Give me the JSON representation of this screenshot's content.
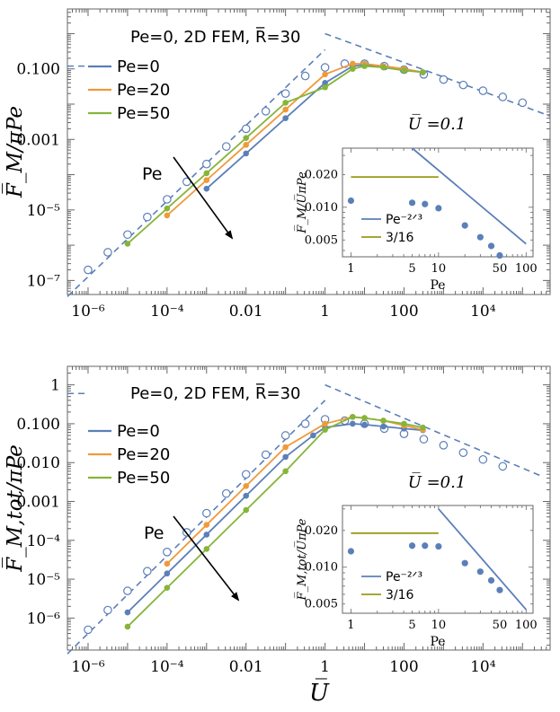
{
  "figure": {
    "x_axis_title": "U̅"
  },
  "colors": {
    "pe0": "#5b7fb9",
    "pe20": "#ef9a3a",
    "pe50": "#86b53a",
    "fem": "#5b7fb9",
    "pe_power": "#5b7fb9",
    "three_sixteenths": "#9a9a1a"
  },
  "chart_data": [
    {
      "type": "line",
      "scale": "log-log",
      "ylabel": "F̅_M/πPe",
      "xlim": [
        3e-07,
        500000.0
      ],
      "ylim": [
        4e-08,
        5
      ],
      "x_ticks": [
        {
          "v": 1e-06,
          "t": "10⁻⁶"
        },
        {
          "v": 0.0001,
          "t": "10⁻⁴"
        },
        {
          "v": 0.01,
          "t": "0.01"
        },
        {
          "v": 1,
          "t": "1"
        },
        {
          "v": 100,
          "t": "100"
        },
        {
          "v": 10000.0,
          "t": "10⁴"
        }
      ],
      "y_ticks": [
        {
          "v": 1e-07,
          "t": "10⁻⁷"
        },
        {
          "v": 1e-05,
          "t": "10⁻⁵"
        },
        {
          "v": 0.001,
          "t": "0.001"
        },
        {
          "v": 0.1,
          "t": "0.100"
        }
      ],
      "legend": [
        "Pe=0",
        "Pe=20",
        "Pe=50"
      ],
      "reference_label": "Pe=0, 2D FEM, R̅=30",
      "arrow_label": "Pe",
      "fem_points": {
        "x": [
          1e-06,
          3.16e-06,
          1e-05,
          3.16e-05,
          0.0001,
          0.000316,
          0.001,
          0.00316,
          0.01,
          0.0316,
          0.1,
          0.316,
          1,
          3.16,
          10,
          31.6,
          100,
          316,
          1000,
          3160,
          10000.0,
          31600.0,
          100000.0
        ],
        "y": [
          2e-07,
          6.3e-07,
          2e-06,
          6.3e-06,
          2e-05,
          6.3e-05,
          0.0002,
          0.00063,
          0.002,
          0.0063,
          0.02,
          0.063,
          0.11,
          0.14,
          0.14,
          0.12,
          0.095,
          0.07,
          0.05,
          0.035,
          0.024,
          0.016,
          0.011
        ]
      },
      "series": [
        {
          "name": "Pe=0",
          "x": [
            0.001,
            0.01,
            0.1,
            1,
            5,
            10,
            30,
            100,
            300
          ],
          "y": [
            4e-05,
            0.0004,
            0.004,
            0.04,
            0.12,
            0.13,
            0.12,
            0.1,
            0.08
          ]
        },
        {
          "name": "Pe=20",
          "x": [
            0.0001,
            0.001,
            0.01,
            0.1,
            1,
            5,
            10,
            30,
            100,
            300
          ],
          "y": [
            7e-06,
            7e-05,
            0.0007,
            0.007,
            0.07,
            0.14,
            0.14,
            0.12,
            0.1,
            0.08
          ]
        },
        {
          "name": "Pe=50",
          "x": [
            1e-05,
            0.0001,
            0.001,
            0.01,
            0.1,
            1,
            5,
            10,
            30,
            100,
            300
          ],
          "y": [
            1.1e-06,
            1.1e-05,
            0.00011,
            0.0011,
            0.011,
            0.03,
            0.1,
            0.12,
            0.11,
            0.09,
            0.08
          ]
        }
      ],
      "reference_lines": [
        {
          "name": "low-U asymptote",
          "x": [
            3e-07,
            1
          ],
          "y": [
            3.5e-08,
            0.35
          ]
        },
        {
          "name": "high-U asymptote",
          "x": [
            1,
            500000.0
          ],
          "y": [
            1,
            0.0046
          ]
        },
        {
          "name": "FEM plateau",
          "x": [
            3e-07,
            1e-06
          ],
          "y": [
            0.12,
            0.12
          ]
        }
      ],
      "inset": {
        "title": "U̅ =0.1",
        "xlabel": "Pe",
        "ylabel": "F̅_M/U̅πPe",
        "xlim": [
          0.8,
          120
        ],
        "ylim": [
          0.0035,
          0.035
        ],
        "x_ticks": [
          {
            "v": 1,
            "t": "1"
          },
          {
            "v": 5,
            "t": "5"
          },
          {
            "v": 10,
            "t": "10"
          },
          {
            "v": 50,
            "t": "50"
          },
          {
            "v": 100,
            "t": "100"
          }
        ],
        "y_ticks": [
          {
            "v": 0.005,
            "t": "0.005"
          },
          {
            "v": 0.01,
            "t": "0.010"
          },
          {
            "v": 0.02,
            "t": "0.020"
          }
        ],
        "points": {
          "x": [
            1,
            5,
            7,
            10,
            20,
            30,
            40,
            50
          ],
          "y": [
            0.0115,
            0.011,
            0.0107,
            0.0098,
            0.0068,
            0.0053,
            0.0044,
            0.0036
          ]
        },
        "legend": [
          "Pe⁻²ᐟ³",
          "3/16"
        ],
        "power_line": {
          "x": [
            5,
            100
          ],
          "y": [
            0.035,
            0.0046
          ]
        },
        "flat_line": {
          "x": [
            1,
            10
          ],
          "y": [
            0.019,
            0.019
          ]
        }
      }
    },
    {
      "type": "line",
      "scale": "log-log",
      "ylabel": "F̅_M,tot/πPe",
      "xlim": [
        3e-07,
        500000.0
      ],
      "ylim": [
        1.5e-07,
        3
      ],
      "x_ticks": [
        {
          "v": 1e-06,
          "t": "10⁻⁶"
        },
        {
          "v": 0.0001,
          "t": "10⁻⁴"
        },
        {
          "v": 0.01,
          "t": "0.01"
        },
        {
          "v": 1,
          "t": "1"
        },
        {
          "v": 100,
          "t": "100"
        },
        {
          "v": 10000.0,
          "t": "10⁴"
        }
      ],
      "y_ticks": [
        {
          "v": 1e-06,
          "t": "10⁻⁶"
        },
        {
          "v": 1e-05,
          "t": "10⁻⁵"
        },
        {
          "v": 0.0001,
          "t": "10⁻⁴"
        },
        {
          "v": 0.001,
          "t": "0.001"
        },
        {
          "v": 0.01,
          "t": "0.010"
        },
        {
          "v": 0.1,
          "t": "0.100"
        },
        {
          "v": 1,
          "t": "1"
        }
      ],
      "legend": [
        "Pe=0",
        "Pe=20",
        "Pe=50"
      ],
      "reference_label": "Pe=0, 2D FEM, R̅=30",
      "arrow_label": "Pe",
      "fem_points": {
        "x": [
          1e-06,
          3.16e-06,
          1e-05,
          3.16e-05,
          0.0001,
          0.000316,
          0.001,
          0.00316,
          0.01,
          0.0316,
          0.1,
          0.316,
          1,
          3.16,
          10,
          31.6,
          100,
          316,
          1000,
          3160,
          10000.0,
          31600.0
        ],
        "y": [
          5e-07,
          1.6e-06,
          5e-06,
          1.6e-05,
          5e-05,
          0.00016,
          0.0005,
          0.0016,
          0.005,
          0.016,
          0.05,
          0.1,
          0.13,
          0.12,
          0.1,
          0.075,
          0.055,
          0.04,
          0.028,
          0.018,
          0.012,
          0.008
        ]
      },
      "series": [
        {
          "name": "Pe=0",
          "x": [
            1e-05,
            0.0001,
            0.001,
            0.01,
            0.1,
            0.5,
            1,
            5,
            10,
            30,
            100,
            300
          ],
          "y": [
            1.4e-06,
            1.4e-05,
            0.00014,
            0.0014,
            0.014,
            0.05,
            0.08,
            0.1,
            0.095,
            0.085,
            0.075,
            0.068
          ]
        },
        {
          "name": "Pe=20",
          "x": [
            0.0001,
            0.001,
            0.01,
            0.1,
            1,
            5,
            10,
            30,
            100,
            300
          ],
          "y": [
            2.5e-05,
            0.00025,
            0.0025,
            0.025,
            0.1,
            0.15,
            0.14,
            0.12,
            0.09,
            0.07
          ]
        },
        {
          "name": "Pe=50",
          "x": [
            1e-05,
            0.0001,
            0.001,
            0.01,
            0.1,
            1,
            5,
            10,
            30,
            100,
            300
          ],
          "y": [
            6e-07,
            6e-06,
            6e-05,
            0.0006,
            0.006,
            0.07,
            0.15,
            0.14,
            0.12,
            0.1,
            0.08
          ]
        }
      ],
      "reference_lines": [
        {
          "name": "low-U asymptote",
          "x": [
            3e-07,
            1
          ],
          "y": [
            1.2e-07,
            0.4
          ]
        },
        {
          "name": "high-U asymptote",
          "x": [
            1,
            300000.0
          ],
          "y": [
            1,
            0.0045
          ]
        },
        {
          "name": "FEM plateau",
          "x": [
            3e-07,
            1e-06
          ],
          "y": [
            0.6,
            0.6
          ]
        }
      ],
      "inset": {
        "title": "U̅ =0.1",
        "xlabel": "Pe",
        "ylabel": "F̅_M,tot/U̅πPe",
        "xlim": [
          0.8,
          120
        ],
        "ylim": [
          0.0042,
          0.032
        ],
        "x_ticks": [
          {
            "v": 1,
            "t": "1"
          },
          {
            "v": 5,
            "t": "5"
          },
          {
            "v": 10,
            "t": "10"
          },
          {
            "v": 50,
            "t": "50"
          },
          {
            "v": 100,
            "t": "100"
          }
        ],
        "y_ticks": [
          {
            "v": 0.005,
            "t": "0.005"
          },
          {
            "v": 0.01,
            "t": "0.010"
          },
          {
            "v": 0.02,
            "t": "0.020"
          }
        ],
        "points": {
          "x": [
            1,
            5,
            7,
            10,
            20,
            30,
            40,
            50
          ],
          "y": [
            0.0135,
            0.015,
            0.015,
            0.0148,
            0.0108,
            0.0092,
            0.0078,
            0.0065
          ]
        },
        "legend": [
          "Pe⁻²ᐟ³",
          "3/16"
        ],
        "power_line": {
          "x": [
            10,
            100
          ],
          "y": [
            0.03,
            0.0045
          ]
        },
        "flat_line": {
          "x": [
            1,
            10
          ],
          "y": [
            0.019,
            0.019
          ]
        }
      }
    }
  ]
}
